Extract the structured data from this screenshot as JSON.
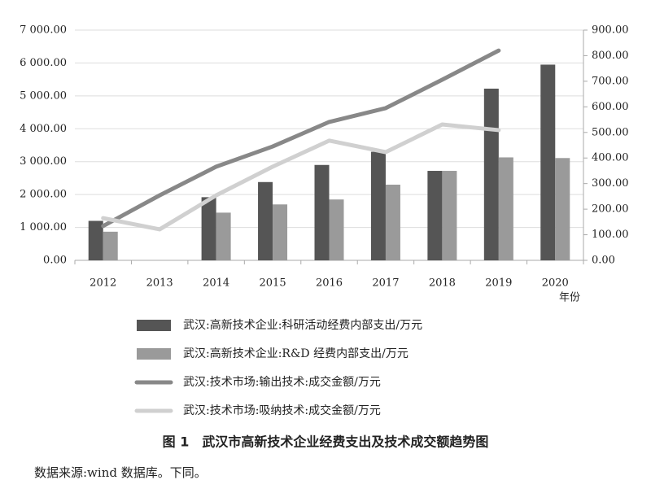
{
  "chart_data": {
    "type": "bar",
    "title": "图 1　武汉市高新技术企业经费支出及技术成交额趋势图",
    "source": "数据来源:wind 数据库。下同。",
    "x_label": "年份",
    "categories": [
      "2012",
      "2013",
      "2014",
      "2015",
      "2016",
      "2017",
      "2018",
      "2019",
      "2020"
    ],
    "series": [
      {
        "name": "武汉:高新技术企业:科研活动经费内部支出/万元",
        "type": "bar",
        "color": "#555555",
        "values": [
          1200,
          null,
          1920,
          2380,
          2900,
          3300,
          2720,
          5220,
          5950
        ]
      },
      {
        "name": "武汉:高新技术企业:R&D 经费内部支出/万元",
        "type": "bar",
        "color": "#9a9a9a",
        "values": [
          870,
          null,
          1450,
          1700,
          1850,
          2300,
          2720,
          3130,
          3110
        ]
      },
      {
        "name": "武汉:技术市场:输出技术:成交金额/万元",
        "type": "line",
        "axis": "y2",
        "color": "#888888",
        "values": [
          134,
          254,
          366,
          445,
          541,
          595,
          706,
          820,
          null
        ]
      },
      {
        "name": "武汉:技术市场:吸纳技术:成交金额/万元",
        "type": "line",
        "axis": "y2",
        "color": "#d0d0d0",
        "values": [
          165,
          121,
          254,
          366,
          468,
          423,
          531,
          509,
          null
        ]
      }
    ],
    "ylim": [
      0,
      7000
    ],
    "yticks": [
      {
        "value": 0,
        "label": "0.00"
      },
      {
        "value": 1000,
        "label": "1 000.00"
      },
      {
        "value": 2000,
        "label": "2 000.00"
      },
      {
        "value": 3000,
        "label": "3 000.00"
      },
      {
        "value": 4000,
        "label": "4 000.00"
      },
      {
        "value": 5000,
        "label": "5 000.00"
      },
      {
        "value": 6000,
        "label": "6 000.00"
      },
      {
        "value": 7000,
        "label": "7 000.00"
      }
    ],
    "y2lim": [
      0,
      900
    ],
    "y2ticks": [
      {
        "value": 0,
        "label": "0.00"
      },
      {
        "value": 100,
        "label": "100.00"
      },
      {
        "value": 200,
        "label": "200.00"
      },
      {
        "value": 300,
        "label": "300.00"
      },
      {
        "value": 400,
        "label": "400.00"
      },
      {
        "value": 500,
        "label": "500.00"
      },
      {
        "value": 600,
        "label": "600.00"
      },
      {
        "value": 700,
        "label": "700.00"
      },
      {
        "value": 800,
        "label": "800.00"
      },
      {
        "value": 900,
        "label": "900.00"
      }
    ],
    "grid": true
  }
}
